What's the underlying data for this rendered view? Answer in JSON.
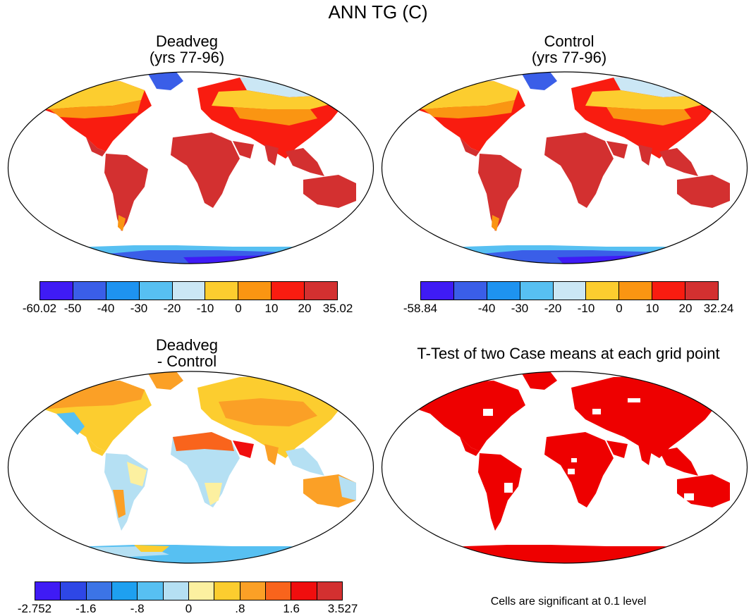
{
  "title": "ANN TG (C)",
  "panels": [
    {
      "id": "deadveg",
      "title_line1": "Deadveg",
      "title_line2": "(yrs 77-96)"
    },
    {
      "id": "control",
      "title_line1": "Control",
      "title_line2": "(yrs 77-96)"
    },
    {
      "id": "diff",
      "title_line1": "Deadveg",
      "title_line2": "- Control"
    },
    {
      "id": "ttest",
      "title_line1": "T-Test of two Case means at each grid point"
    }
  ],
  "colorbars": {
    "deadveg": {
      "colors": [
        "#3f1bf5",
        "#3a5ee8",
        "#1e93f0",
        "#57c0f2",
        "#cbe7f5",
        "#fccd2f",
        "#fa9512",
        "#f91c10",
        "#d33030"
      ],
      "labels": [
        "-60.02",
        "-50",
        "-40",
        "-30",
        "-20",
        "-10",
        "0",
        "10",
        "20",
        "35.02"
      ]
    },
    "control": {
      "colors": [
        "#3f1bf5",
        "#3a5ee8",
        "#1e93f0",
        "#57c0f2",
        "#cbe7f5",
        "#fccd2f",
        "#fa9512",
        "#f91c10",
        "#d33030"
      ],
      "labels": [
        "-58.84",
        "",
        "-40",
        "-30",
        "-20",
        "-10",
        "0",
        "10",
        "20",
        "32.24"
      ]
    },
    "diff": {
      "colors": [
        "#3f1bf5",
        "#2e47e6",
        "#3c74e6",
        "#1ea0f0",
        "#57c0f2",
        "#b5e0f3",
        "#fcf0a0",
        "#fccd2f",
        "#fba026",
        "#f9641c",
        "#f00e0e",
        "#d33030"
      ],
      "labels": [
        "-2.752",
        "",
        "-1.6",
        "",
        "-.8",
        "",
        "0",
        "",
        ".8",
        "",
        "1.6",
        "",
        "3.527"
      ]
    }
  },
  "note": "Cells are significant at 0.1 level",
  "colors": {
    "warm": "#d33030",
    "hot": "#f91c10",
    "orange": "#fa9512",
    "yellow": "#fccd2f",
    "ice": "#3f1bf5",
    "iceblue": "#3a5ee8",
    "lightblue": "#57c0f2",
    "paleblue": "#cbe7f5",
    "sig": "#ee0000"
  }
}
